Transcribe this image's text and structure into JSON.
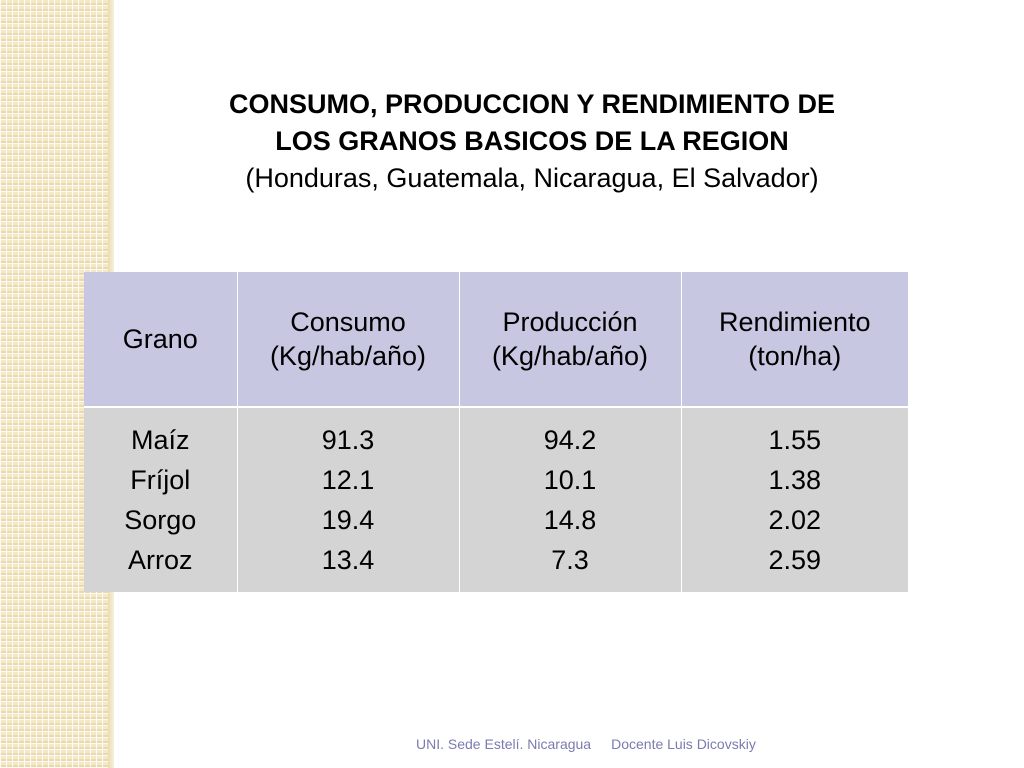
{
  "title": {
    "line1": "CONSUMO, PRODUCCION Y RENDIMIENTO DE",
    "line2": "LOS GRANOS BASICOS DE LA REGION",
    "subtitle": "(Honduras, Guatemala, Nicaragua, El Salvador)"
  },
  "table": {
    "headers": [
      {
        "line1": "Grano",
        "line2": ""
      },
      {
        "line1": "Consumo",
        "line2": "(Kg/hab/año)"
      },
      {
        "line1": "Producción",
        "line2": "(Kg/hab/año)"
      },
      {
        "line1": "Rendimiento",
        "line2": "(ton/ha)"
      }
    ],
    "granos": [
      "Maíz",
      "Fríjol",
      "Sorgo",
      "Arroz"
    ],
    "consumo": [
      "91.3",
      "12.1",
      "19.4",
      "13.4"
    ],
    "produccion": [
      "94.2",
      "10.1",
      "14.8",
      "7.3"
    ],
    "rendimiento": [
      "1.55",
      "1.38",
      "2.02",
      "2.59"
    ]
  },
  "footer": {
    "institution": "UNI. Sede Estelí. Nicaragua",
    "author": "Docente Luis Dicovskiy"
  },
  "colors": {
    "header_bg": "#c7c7e2",
    "body_bg": "#d4d4d4",
    "footer_text": "#7b7bb0",
    "side_pattern": "#f3e9c6"
  }
}
